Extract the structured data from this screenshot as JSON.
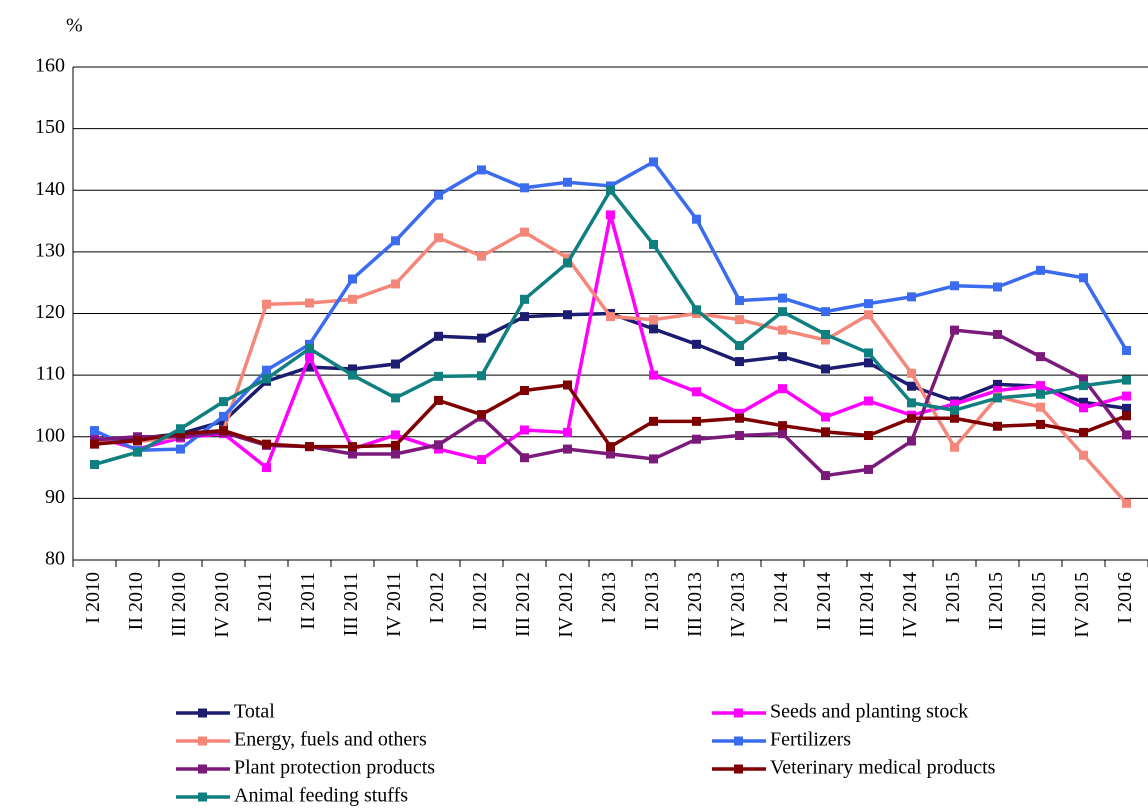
{
  "chart_data": {
    "type": "line",
    "y_unit": "%",
    "categories": [
      "I 2010",
      "II 2010",
      "III 2010",
      "IV 2010",
      "I 2011",
      "II 2011",
      "III 2011",
      "IV 2011",
      "I 2012",
      "II 2012",
      "III 2012",
      "IV 2012",
      "I 2013",
      "II 2013",
      "III 2013",
      "IV 2013",
      "I 2014",
      "II 2014",
      "III 2014",
      "IV 2014",
      "I 2015",
      "II 2015",
      "III 2015",
      "IV 2015",
      "I 2016"
    ],
    "ylim": [
      80,
      160
    ],
    "yticks": [
      80,
      90,
      100,
      110,
      120,
      130,
      140,
      150,
      160
    ],
    "grid": true,
    "series": [
      {
        "name": "Total",
        "color": "#1c1c70",
        "values": [
          99.5,
          99.7,
          100.5,
          102.5,
          109,
          111.3,
          111,
          111.8,
          116.3,
          116,
          119.5,
          119.8,
          120,
          117.5,
          115,
          112.2,
          113,
          111,
          112,
          108.2,
          105.8,
          108.5,
          108.2,
          105.6,
          104.6
        ]
      },
      {
        "name": "Seeds and planting stock",
        "color": "#ff00ff",
        "values": [
          100,
          98,
          99.8,
          100.5,
          95,
          113,
          98,
          100.3,
          98,
          96.3,
          101.1,
          100.7,
          136,
          110,
          107.3,
          103.8,
          107.8,
          103.2,
          105.8,
          103.5,
          105.3,
          107.5,
          108.3,
          104.7,
          106.6
        ]
      },
      {
        "name": "Energy, fuels and others",
        "color": "#f4877a",
        "values": [
          99,
          99.2,
          100,
          101,
          121.5,
          121.7,
          122.3,
          124.8,
          132.3,
          129.3,
          133.2,
          129,
          119.5,
          119,
          120,
          119,
          117.3,
          115.7,
          119.8,
          110.3,
          98.3,
          106.5,
          104.8,
          97,
          89.2
        ]
      },
      {
        "name": "Fertilizers",
        "color": "#3b6cf0",
        "values": [
          101,
          97.8,
          98,
          103.3,
          110.8,
          115,
          125.6,
          131.8,
          139.2,
          143.3,
          140.4,
          141.3,
          140.7,
          144.6,
          135.3,
          122.1,
          122.5,
          120.3,
          121.6,
          122.7,
          124.5,
          124.3,
          127,
          125.8,
          114
        ]
      },
      {
        "name": "Plant protection products",
        "color": "#7b1a7b",
        "values": [
          99.5,
          100,
          100,
          100.7,
          98.6,
          98.4,
          97.2,
          97.2,
          98.7,
          103.2,
          96.6,
          98,
          97.2,
          96.4,
          99.6,
          100.2,
          100.5,
          93.7,
          94.7,
          99.3,
          117.3,
          116.6,
          113,
          109.4,
          100.3
        ]
      },
      {
        "name": "Veterinary medical products",
        "color": "#7f0000",
        "values": [
          98.8,
          99.4,
          100.5,
          101,
          98.8,
          98.4,
          98.4,
          98.6,
          105.9,
          103.6,
          107.5,
          108.4,
          98.4,
          102.5,
          102.5,
          103,
          101.8,
          100.8,
          100.2,
          103,
          103,
          101.7,
          102,
          100.7,
          103.4
        ]
      },
      {
        "name": "Animal feeding stuffs",
        "color": "#0f7f7f",
        "values": [
          95.5,
          97.5,
          101.3,
          105.7,
          109.4,
          114.3,
          110,
          106.3,
          109.8,
          109.9,
          122.3,
          128.2,
          140,
          131.2,
          120.6,
          114.8,
          120.3,
          116.6,
          113.6,
          105.5,
          104.3,
          106.3,
          106.9,
          108.3,
          109.2
        ]
      }
    ]
  }
}
